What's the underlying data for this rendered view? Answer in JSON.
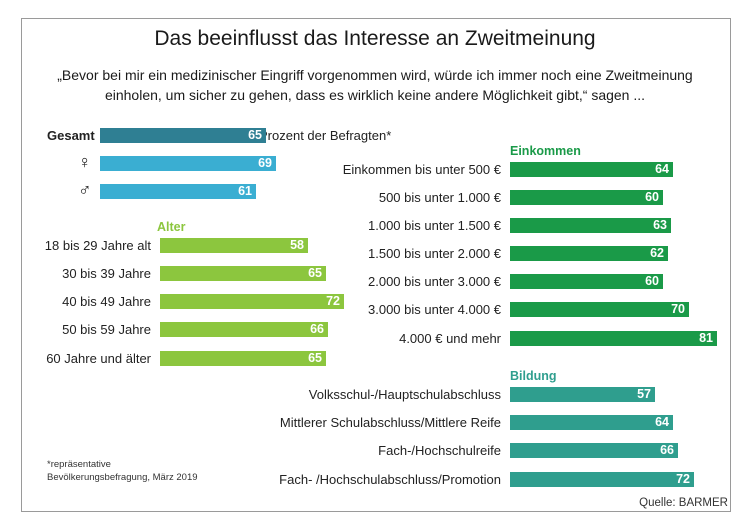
{
  "title": "Das beeinflusst das Interesse an Zweitmeinung",
  "subtitle": "„Bevor bei mir ein medizinischer Eingriff vorgenommen wird, würde ich immer noch eine Zweitmeinung einholen, um sicher zu gehen, dass es wirklich keine andere Möglichkeit gibt,“ sagen ...",
  "unit_note": "Prozent der Befragten*",
  "footnote_line1": "*repräsentative",
  "footnote_line2": "Bevölkerungsbefragung, März 2019",
  "source": "Quelle: BARMER",
  "colors": {
    "gesamt": "#2f7f93",
    "geschlecht": "#3aaed2",
    "alter": "#8cc63e",
    "einkommen": "#1a9a48",
    "bildung": "#2f9e8e"
  },
  "chart_data": {
    "type": "bar",
    "orientation": "horizontal",
    "groups": [
      {
        "name": "",
        "categories": [
          "Gesamt",
          "♀",
          "♂"
        ],
        "values": [
          65,
          69,
          61
        ]
      },
      {
        "name": "Alter",
        "categories": [
          "18 bis 29 Jahre alt",
          "30 bis 39 Jahre",
          "40 bis 49 Jahre",
          "50 bis 59 Jahre",
          "60 Jahre und älter"
        ],
        "values": [
          58,
          65,
          72,
          66,
          65
        ]
      },
      {
        "name": "Einkommen",
        "categories": [
          "Einkommen bis unter 500 €",
          "500 bis unter 1.000 €",
          "1.000 bis unter 1.500 €",
          "1.500 bis unter 2.000 €",
          "2.000 bis unter 3.000 €",
          "3.000 bis unter 4.000 €",
          "4.000 € und mehr"
        ],
        "values": [
          64,
          60,
          63,
          62,
          60,
          70,
          81
        ]
      },
      {
        "name": "Bildung",
        "categories": [
          "Volksschul-/Hauptschulabschluss",
          "Mittlerer Schulabschluss/Mittlere Reife",
          "Fach-/Hochschulreife",
          "Fach- /Hochschulabschluss/Promotion"
        ],
        "values": [
          57,
          64,
          66,
          72
        ]
      }
    ]
  }
}
